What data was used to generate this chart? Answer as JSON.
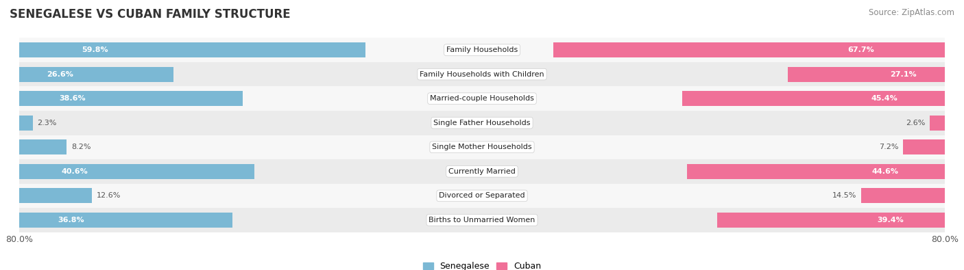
{
  "title": "SENEGALESE VS CUBAN FAMILY STRUCTURE",
  "source": "Source: ZipAtlas.com",
  "categories": [
    "Family Households",
    "Family Households with Children",
    "Married-couple Households",
    "Single Father Households",
    "Single Mother Households",
    "Currently Married",
    "Divorced or Separated",
    "Births to Unmarried Women"
  ],
  "senegalese": [
    59.8,
    26.6,
    38.6,
    2.3,
    8.2,
    40.6,
    12.6,
    36.8
  ],
  "cuban": [
    67.7,
    27.1,
    45.4,
    2.6,
    7.2,
    44.6,
    14.5,
    39.4
  ],
  "max_val": 80.0,
  "bar_color_senegalese": "#7BB8D4",
  "bar_color_cuban": "#F07098",
  "bg_color_row_even": "#EBEBEB",
  "bg_color_row_odd": "#F7F7F7",
  "bar_height": 0.62,
  "title_fontsize": 12,
  "source_fontsize": 8.5,
  "label_fontsize": 8,
  "category_fontsize": 8
}
